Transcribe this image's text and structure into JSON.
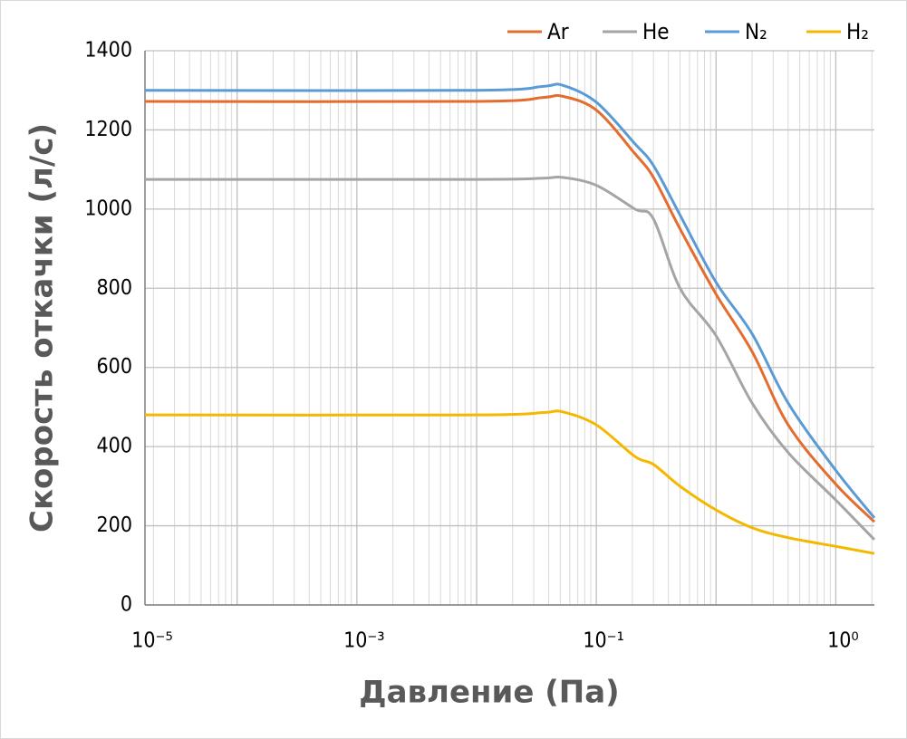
{
  "chart_data": {
    "type": "line",
    "xlabel": "Давление (Па)",
    "ylabel": "Скорость откачки (л/с)",
    "xlog": true,
    "xlim": [
      1.7e-06,
      2.1
    ],
    "xticks": [
      1e-05,
      0.0001,
      0.001,
      0.01,
      0.1,
      1
    ],
    "minor_grid": true,
    "ylim": [
      0,
      1400
    ],
    "yticks": [
      0,
      200,
      400,
      600,
      800,
      1000,
      1200,
      1400
    ],
    "grid": true,
    "legend": "top-right",
    "annotations": [
      {
        "text": "10⁻⁵",
        "x": 1.7e-06
      },
      {
        "text": "10⁻³",
        "x": 0.0001
      },
      {
        "text": "10⁻¹",
        "x": 0.01
      },
      {
        "text": "10⁰",
        "x": 1
      }
    ],
    "x": [
      1.7e-06,
      0.001,
      0.0036,
      0.0052,
      0.01,
      0.021,
      0.03,
      0.05,
      0.1,
      0.2,
      0.4,
      1,
      2.1
    ],
    "series": [
      {
        "name": "Ar",
        "color": "#e46c2e",
        "values": [
          1272,
          1272,
          1282,
          1285,
          1250,
          1140,
          1080,
          950,
          785,
          640,
          455,
          305,
          210
        ]
      },
      {
        "name": "He",
        "color": "#a5a5a5",
        "values": [
          1075,
          1075,
          1078,
          1080,
          1060,
          1000,
          975,
          800,
          680,
          510,
          385,
          265,
          165
        ]
      },
      {
        "name": "N₂",
        "color": "#5b9bd5",
        "values": [
          1300,
          1300,
          1310,
          1313,
          1270,
          1165,
          1110,
          985,
          815,
          685,
          510,
          340,
          220
        ]
      },
      {
        "name": "H₂",
        "color": "#f5b800",
        "values": [
          480,
          480,
          486,
          488,
          455,
          375,
          355,
          300,
          240,
          195,
          170,
          148,
          130
        ]
      }
    ]
  }
}
